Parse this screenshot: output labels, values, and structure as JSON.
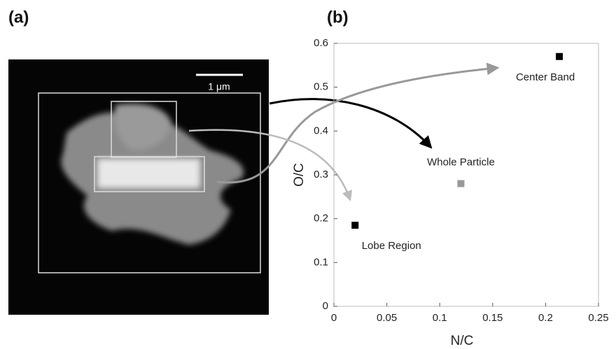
{
  "panel_labels": [
    "(a)",
    "(b)"
  ],
  "image": {
    "scale_bar": "1 μm"
  },
  "chart_data": {
    "type": "scatter",
    "x_label": "N/C",
    "y_label": "O/C",
    "xlim": [
      0,
      0.25
    ],
    "xticks": [
      0,
      0.05,
      0.1,
      0.15,
      0.2,
      0.25
    ],
    "ylim": [
      0,
      0.6
    ],
    "yticks": [
      0,
      0.1,
      0.2,
      0.3,
      0.4,
      0.5,
      0.6
    ],
    "series": [
      {
        "name": "Center Band",
        "color": "#000000",
        "x": [
          0.213
        ],
        "values": [
          0.57
        ]
      },
      {
        "name": "Whole Particle",
        "color": "#999999",
        "x": [
          0.12
        ],
        "values": [
          0.28
        ]
      },
      {
        "name": "Lobe Region",
        "color": "#000000",
        "x": [
          0.02
        ],
        "values": [
          0.185
        ]
      }
    ]
  }
}
